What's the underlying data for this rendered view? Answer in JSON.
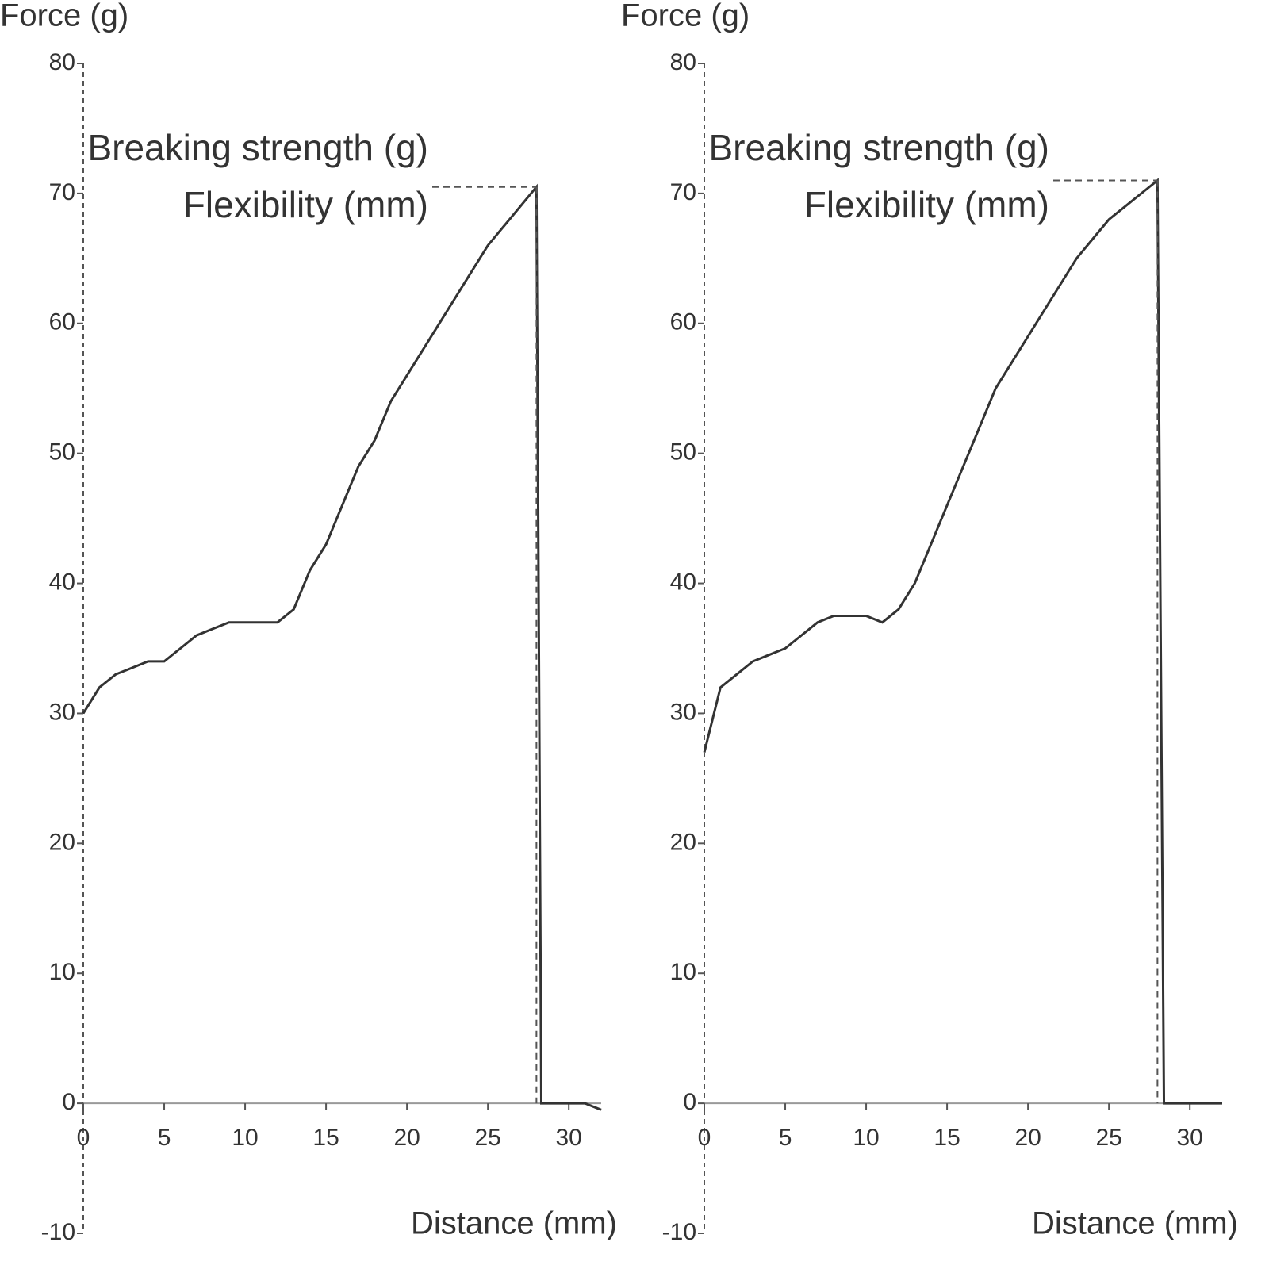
{
  "chart_data": [
    {
      "type": "line",
      "y_label": "Force (g)",
      "x_label": "Distance (mm)",
      "annotations": [
        "Breaking strength (g)",
        "Flexibility (mm)"
      ],
      "x": [
        0,
        1,
        2,
        3,
        4,
        5,
        6,
        7,
        8,
        9,
        10,
        11,
        12,
        13,
        14,
        15,
        16,
        17,
        18,
        19,
        20,
        21,
        22,
        23,
        24,
        25,
        26,
        27,
        28,
        28.3,
        29,
        30,
        31,
        32
      ],
      "values": [
        30,
        32,
        33,
        33.5,
        34,
        34,
        35,
        36,
        36.5,
        37,
        37,
        37,
        37,
        38,
        41,
        43,
        46,
        49,
        51,
        54,
        56,
        58,
        60,
        62,
        64,
        66,
        67.5,
        69,
        70.5,
        0,
        0,
        0,
        0,
        -0.5
      ],
      "color": "#333333",
      "xlim": [
        0,
        32
      ],
      "xticks": [
        0,
        5,
        10,
        15,
        20,
        25,
        30
      ],
      "ylim": [
        -10,
        80
      ],
      "yticks": [
        -10,
        0,
        10,
        20,
        30,
        40,
        50,
        60,
        70,
        80
      ]
    },
    {
      "type": "line",
      "y_label": "Force (g)",
      "x_label": "Distance (mm)",
      "annotations": [
        "Breaking strength (g)",
        "Flexibility (mm)"
      ],
      "x": [
        0,
        1,
        2,
        3,
        4,
        5,
        6,
        7,
        8,
        9,
        10,
        11,
        12,
        13,
        14,
        15,
        16,
        17,
        18,
        19,
        20,
        21,
        22,
        23,
        24,
        25,
        26,
        27,
        28,
        28.4,
        29,
        30,
        31,
        32
      ],
      "values": [
        27,
        32,
        33,
        34,
        34.5,
        35,
        36,
        37,
        37.5,
        37.5,
        37.5,
        37,
        38,
        40,
        43,
        46,
        49,
        52,
        55,
        57,
        59,
        61,
        63,
        65,
        66.5,
        68,
        69,
        70,
        71,
        0,
        0,
        0,
        0,
        0
      ],
      "color": "#333333",
      "xlim": [
        0,
        32
      ],
      "xticks": [
        0,
        5,
        10,
        15,
        20,
        25,
        30
      ],
      "ylim": [
        -10,
        80
      ],
      "yticks": [
        -10,
        0,
        10,
        20,
        30,
        40,
        50,
        60,
        70,
        80
      ]
    }
  ]
}
